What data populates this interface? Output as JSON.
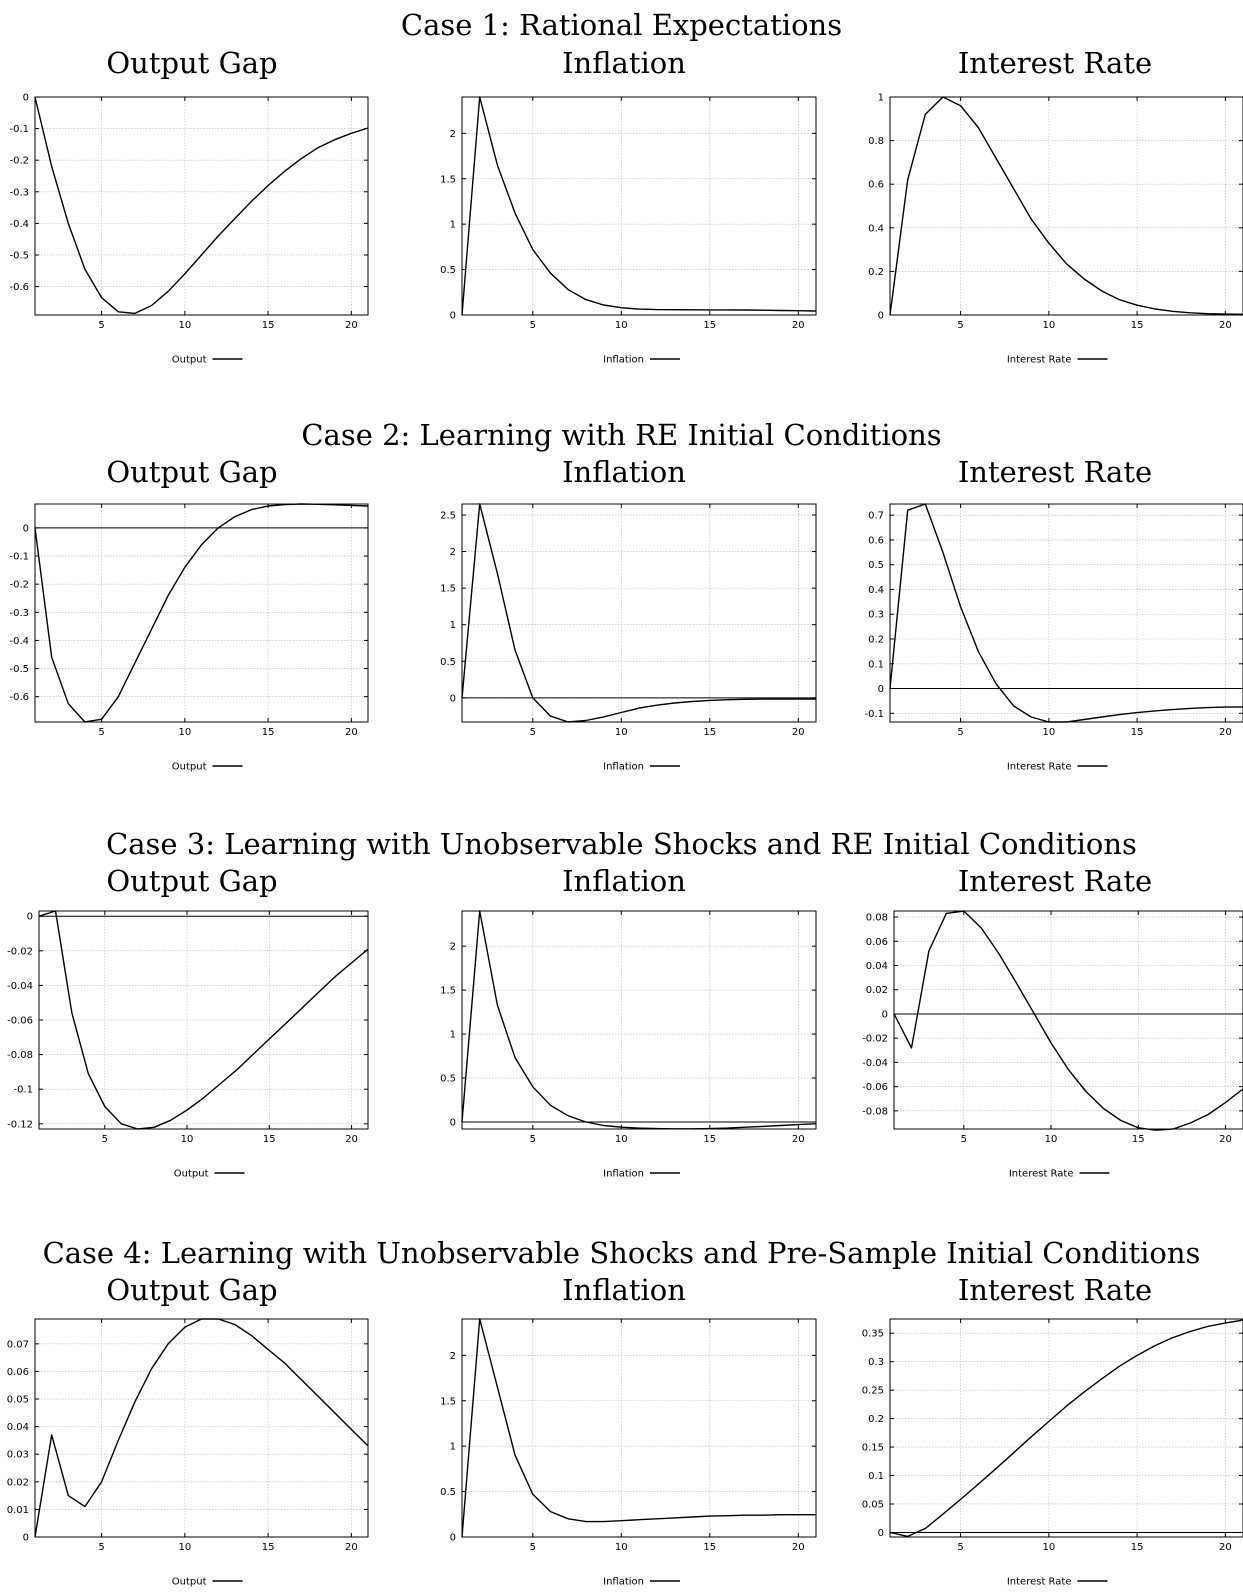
{
  "cases": [
    {
      "title": "Case 1: Rational Expectations",
      "panels": [
        "Output Gap",
        "Inflation",
        "Interest Rate"
      ]
    },
    {
      "title": "Case 2: Learning with RE Initial Conditions",
      "panels": [
        "Output Gap",
        "Inflation",
        "Interest Rate"
      ]
    },
    {
      "title": "Case 3: Learning with Unobservable Shocks and RE Initial Conditions",
      "panels": [
        "Output Gap",
        "Inflation",
        "Interest Rate"
      ]
    },
    {
      "title": "Case 4: Learning with Unobservable Shocks and Pre-Sample Initial Conditions",
      "panels": [
        "Output Gap",
        "Inflation",
        "Interest Rate"
      ]
    }
  ],
  "chart_data": [
    {
      "type": "line",
      "case": 1,
      "title": "Output Gap",
      "xlabel": "",
      "ylabel": "",
      "legend": "Output",
      "legend_position": "bottom-center",
      "grid": true,
      "zero_line": false,
      "xlim": [
        1,
        21
      ],
      "ylim": [
        -0.69,
        0
      ],
      "xticks": [
        5,
        10,
        15,
        20
      ],
      "yticks": [
        0,
        -0.1,
        -0.2,
        -0.3,
        -0.4,
        -0.5,
        -0.6
      ],
      "ytick_labels": [
        "0",
        "-0.1",
        "-0.2",
        "-0.3",
        "-0.4",
        "-0.5",
        "-0.6"
      ],
      "series": [
        {
          "name": "Output",
          "x": [
            1,
            2,
            3,
            4,
            5,
            6,
            7,
            8,
            9,
            10,
            11,
            12,
            13,
            14,
            15,
            16,
            17,
            18,
            19,
            20,
            21
          ],
          "values": [
            0,
            -0.22,
            -0.4,
            -0.545,
            -0.635,
            -0.68,
            -0.685,
            -0.66,
            -0.615,
            -0.56,
            -0.5,
            -0.44,
            -0.385,
            -0.33,
            -0.28,
            -0.235,
            -0.195,
            -0.16,
            -0.135,
            -0.115,
            -0.098
          ]
        }
      ]
    },
    {
      "type": "line",
      "case": 1,
      "title": "Inflation",
      "xlabel": "",
      "ylabel": "",
      "legend": "Inflation",
      "legend_position": "bottom-center",
      "grid": true,
      "zero_line": false,
      "xlim": [
        1,
        21
      ],
      "ylim": [
        0,
        2.4
      ],
      "xticks": [
        5,
        10,
        15,
        20
      ],
      "yticks": [
        0,
        0.5,
        1,
        1.5,
        2
      ],
      "ytick_labels": [
        "0",
        "0.5",
        "1",
        "1.5",
        "2"
      ],
      "series": [
        {
          "name": "Inflation",
          "x": [
            1,
            2,
            3,
            4,
            5,
            6,
            7,
            8,
            9,
            10,
            11,
            12,
            13,
            14,
            15,
            16,
            17,
            18,
            19,
            20,
            21
          ],
          "values": [
            0,
            2.4,
            1.65,
            1.12,
            0.72,
            0.46,
            0.28,
            0.17,
            0.11,
            0.08,
            0.065,
            0.06,
            0.058,
            0.057,
            0.056,
            0.056,
            0.055,
            0.053,
            0.05,
            0.047,
            0.044
          ]
        }
      ]
    },
    {
      "type": "line",
      "case": 1,
      "title": "Interest Rate",
      "xlabel": "",
      "ylabel": "",
      "legend": "Interest Rate",
      "legend_position": "bottom-center",
      "grid": true,
      "zero_line": false,
      "xlim": [
        1,
        21
      ],
      "ylim": [
        0,
        1.0
      ],
      "xticks": [
        5,
        10,
        15,
        20
      ],
      "yticks": [
        0,
        0.2,
        0.4,
        0.6,
        0.8,
        1
      ],
      "ytick_labels": [
        "0",
        "0.2",
        "0.4",
        "0.6",
        "0.8",
        "1"
      ],
      "series": [
        {
          "name": "Interest Rate",
          "x": [
            1,
            2,
            3,
            4,
            5,
            6,
            7,
            8,
            9,
            10,
            11,
            12,
            13,
            14,
            15,
            16,
            17,
            18,
            19,
            20,
            21
          ],
          "values": [
            0,
            0.62,
            0.92,
            1.0,
            0.96,
            0.86,
            0.72,
            0.58,
            0.44,
            0.33,
            0.235,
            0.165,
            0.11,
            0.07,
            0.045,
            0.028,
            0.017,
            0.01,
            0.006,
            0.004,
            0.003
          ]
        }
      ]
    },
    {
      "type": "line",
      "case": 2,
      "title": "Output Gap",
      "xlabel": "",
      "ylabel": "",
      "legend": "Output",
      "legend_position": "bottom-center",
      "grid": true,
      "zero_line": true,
      "xlim": [
        1,
        21
      ],
      "ylim": [
        -0.69,
        0.085
      ],
      "xticks": [
        5,
        10,
        15,
        20
      ],
      "yticks": [
        0,
        -0.1,
        -0.2,
        -0.3,
        -0.4,
        -0.5,
        -0.6
      ],
      "ytick_labels": [
        "0",
        "-0.1",
        "-0.2",
        "-0.3",
        "-0.4",
        "-0.5",
        "-0.6"
      ],
      "series": [
        {
          "name": "Output",
          "x": [
            1,
            2,
            3,
            4,
            5,
            6,
            7,
            8,
            9,
            10,
            11,
            12,
            13,
            14,
            15,
            16,
            17,
            18,
            19,
            20,
            21
          ],
          "values": [
            0,
            -0.46,
            -0.625,
            -0.69,
            -0.68,
            -0.6,
            -0.48,
            -0.36,
            -0.24,
            -0.14,
            -0.06,
            0.0,
            0.04,
            0.065,
            0.078,
            0.083,
            0.085,
            0.084,
            0.082,
            0.08,
            0.078
          ]
        }
      ]
    },
    {
      "type": "line",
      "case": 2,
      "title": "Inflation",
      "xlabel": "",
      "ylabel": "",
      "legend": "Inflation",
      "legend_position": "bottom-center",
      "grid": true,
      "zero_line": true,
      "xlim": [
        1,
        21
      ],
      "ylim": [
        -0.33,
        2.65
      ],
      "xticks": [
        5,
        10,
        15,
        20
      ],
      "yticks": [
        0,
        0.5,
        1,
        1.5,
        2,
        2.5
      ],
      "ytick_labels": [
        "0",
        "0.5",
        "1",
        "1.5",
        "2",
        "2.5"
      ],
      "series": [
        {
          "name": "Inflation",
          "x": [
            1,
            2,
            3,
            4,
            5,
            6,
            7,
            8,
            9,
            10,
            11,
            12,
            13,
            14,
            15,
            16,
            17,
            18,
            19,
            20,
            21
          ],
          "values": [
            0,
            2.65,
            1.7,
            0.65,
            0.0,
            -0.25,
            -0.33,
            -0.31,
            -0.26,
            -0.2,
            -0.14,
            -0.1,
            -0.07,
            -0.05,
            -0.035,
            -0.025,
            -0.02,
            -0.017,
            -0.016,
            -0.016,
            -0.016
          ]
        }
      ]
    },
    {
      "type": "line",
      "case": 2,
      "title": "Interest Rate",
      "xlabel": "",
      "ylabel": "",
      "legend": "Interest Rate",
      "legend_position": "bottom-center",
      "grid": true,
      "zero_line": true,
      "xlim": [
        1,
        21
      ],
      "ylim": [
        -0.135,
        0.745
      ],
      "xticks": [
        5,
        10,
        15,
        20
      ],
      "yticks": [
        -0.1,
        0,
        0.1,
        0.2,
        0.3,
        0.4,
        0.5,
        0.6,
        0.7
      ],
      "ytick_labels": [
        "-0.1",
        "0",
        "0.1",
        "0.2",
        "0.3",
        "0.4",
        "0.5",
        "0.6",
        "0.7"
      ],
      "series": [
        {
          "name": "Interest Rate",
          "x": [
            1,
            2,
            3,
            4,
            5,
            6,
            7,
            8,
            9,
            10,
            11,
            12,
            13,
            14,
            15,
            16,
            17,
            18,
            19,
            20,
            21
          ],
          "values": [
            0,
            0.72,
            0.745,
            0.55,
            0.33,
            0.15,
            0.02,
            -0.07,
            -0.115,
            -0.135,
            -0.135,
            -0.125,
            -0.115,
            -0.105,
            -0.097,
            -0.09,
            -0.085,
            -0.08,
            -0.077,
            -0.075,
            -0.074
          ]
        }
      ]
    },
    {
      "type": "line",
      "case": 3,
      "title": "Output Gap",
      "xlabel": "",
      "ylabel": "",
      "legend": "Output",
      "legend_position": "bottom-center",
      "grid": true,
      "zero_line": true,
      "xlim": [
        1,
        21
      ],
      "ylim": [
        -0.123,
        0.003
      ],
      "xticks": [
        5,
        10,
        15,
        20
      ],
      "yticks": [
        0,
        -0.02,
        -0.04,
        -0.06,
        -0.08,
        -0.1,
        -0.12
      ],
      "ytick_labels": [
        "0",
        "-0.02",
        "-0.04",
        "-0.06",
        "-0.08",
        "-0.1",
        "-0.12"
      ],
      "series": [
        {
          "name": "Output",
          "x": [
            1,
            2,
            3,
            4,
            5,
            6,
            7,
            8,
            9,
            10,
            11,
            12,
            13,
            14,
            15,
            16,
            17,
            18,
            19,
            20,
            21
          ],
          "values": [
            0,
            0.003,
            -0.056,
            -0.091,
            -0.11,
            -0.12,
            -0.123,
            -0.122,
            -0.118,
            -0.112,
            -0.105,
            -0.097,
            -0.089,
            -0.08,
            -0.071,
            -0.062,
            -0.053,
            -0.044,
            -0.035,
            -0.027,
            -0.019
          ]
        }
      ]
    },
    {
      "type": "line",
      "case": 3,
      "title": "Inflation",
      "xlabel": "",
      "ylabel": "",
      "legend": "Inflation",
      "legend_position": "bottom-center",
      "grid": true,
      "zero_line": true,
      "xlim": [
        1,
        21
      ],
      "ylim": [
        -0.08,
        2.4
      ],
      "xticks": [
        5,
        10,
        15,
        20
      ],
      "yticks": [
        0,
        0.5,
        1,
        1.5,
        2
      ],
      "ytick_labels": [
        "0",
        "0.5",
        "1",
        "1.5",
        "2"
      ],
      "series": [
        {
          "name": "Inflation",
          "x": [
            1,
            2,
            3,
            4,
            5,
            6,
            7,
            8,
            9,
            10,
            11,
            12,
            13,
            14,
            15,
            16,
            17,
            18,
            19,
            20,
            21
          ],
          "values": [
            0,
            2.4,
            1.33,
            0.73,
            0.4,
            0.19,
            0.07,
            0.0,
            -0.04,
            -0.06,
            -0.07,
            -0.075,
            -0.078,
            -0.078,
            -0.075,
            -0.07,
            -0.06,
            -0.05,
            -0.04,
            -0.03,
            -0.02
          ]
        }
      ]
    },
    {
      "type": "line",
      "case": 3,
      "title": "Interest Rate",
      "xlabel": "",
      "ylabel": "",
      "legend": "Interest Rate",
      "legend_position": "bottom-center",
      "grid": true,
      "zero_line": true,
      "xlim": [
        1,
        21
      ],
      "ylim": [
        -0.095,
        0.085
      ],
      "xticks": [
        5,
        10,
        15,
        20
      ],
      "yticks": [
        -0.08,
        -0.06,
        -0.04,
        -0.02,
        0,
        0.02,
        0.04,
        0.06,
        0.08
      ],
      "ytick_labels": [
        "-0.08",
        "-0.06",
        "-0.04",
        "-0.02",
        "0",
        "0.02",
        "0.04",
        "0.06",
        "0.08"
      ],
      "series": [
        {
          "name": "Interest Rate",
          "x": [
            1,
            2,
            3,
            4,
            5,
            6,
            7,
            8,
            9,
            10,
            11,
            12,
            13,
            14,
            15,
            16,
            17,
            18,
            19,
            20,
            21
          ],
          "values": [
            0,
            -0.028,
            0.052,
            0.083,
            0.085,
            0.071,
            0.05,
            0.026,
            0.001,
            -0.024,
            -0.046,
            -0.064,
            -0.078,
            -0.088,
            -0.094,
            -0.096,
            -0.095,
            -0.09,
            -0.083,
            -0.073,
            -0.062
          ]
        }
      ]
    },
    {
      "type": "line",
      "case": 4,
      "title": "Output Gap",
      "xlabel": "",
      "ylabel": "",
      "legend": "Output",
      "legend_position": "bottom-center",
      "grid": true,
      "zero_line": false,
      "xlim": [
        1,
        21
      ],
      "ylim": [
        0,
        0.079
      ],
      "xticks": [
        5,
        10,
        15,
        20
      ],
      "yticks": [
        0,
        0.01,
        0.02,
        0.03,
        0.04,
        0.05,
        0.06,
        0.07
      ],
      "ytick_labels": [
        "0",
        "0.01",
        "0.02",
        "0.03",
        "0.04",
        "0.05",
        "0.06",
        "0.07"
      ],
      "series": [
        {
          "name": "Output",
          "x": [
            1,
            2,
            3,
            4,
            5,
            6,
            7,
            8,
            9,
            10,
            11,
            12,
            13,
            14,
            15,
            16,
            17,
            18,
            19,
            20,
            21
          ],
          "values": [
            0,
            0.037,
            0.015,
            0.011,
            0.02,
            0.035,
            0.049,
            0.061,
            0.07,
            0.076,
            0.079,
            0.079,
            0.077,
            0.073,
            0.068,
            0.063,
            0.057,
            0.051,
            0.045,
            0.039,
            0.033
          ]
        }
      ]
    },
    {
      "type": "line",
      "case": 4,
      "title": "Inflation",
      "xlabel": "",
      "ylabel": "",
      "legend": "Inflation",
      "legend_position": "bottom-center",
      "grid": true,
      "zero_line": false,
      "xlim": [
        1,
        21
      ],
      "ylim": [
        0,
        2.4
      ],
      "xticks": [
        5,
        10,
        15,
        20
      ],
      "yticks": [
        0,
        0.5,
        1,
        1.5,
        2
      ],
      "ytick_labels": [
        "0",
        "0.5",
        "1",
        "1.5",
        "2"
      ],
      "series": [
        {
          "name": "Inflation",
          "x": [
            1,
            2,
            3,
            4,
            5,
            6,
            7,
            8,
            9,
            10,
            11,
            12,
            13,
            14,
            15,
            16,
            17,
            18,
            19,
            20,
            21
          ],
          "values": [
            0,
            2.4,
            1.65,
            0.9,
            0.47,
            0.28,
            0.2,
            0.17,
            0.17,
            0.18,
            0.19,
            0.2,
            0.21,
            0.22,
            0.23,
            0.235,
            0.24,
            0.24,
            0.245,
            0.245,
            0.245
          ]
        }
      ]
    },
    {
      "type": "line",
      "case": 4,
      "title": "Interest Rate",
      "xlabel": "",
      "ylabel": "",
      "legend": "Interest Rate",
      "legend_position": "bottom-center",
      "grid": true,
      "zero_line": true,
      "xlim": [
        1,
        21
      ],
      "ylim": [
        -0.008,
        0.375
      ],
      "xticks": [
        5,
        10,
        15,
        20
      ],
      "yticks": [
        0,
        0.05,
        0.1,
        0.15,
        0.2,
        0.25,
        0.3,
        0.35
      ],
      "ytick_labels": [
        "0",
        "0.05",
        "0.1",
        "0.15",
        "0.2",
        "0.25",
        "0.3",
        "0.35"
      ],
      "series": [
        {
          "name": "Interest Rate",
          "x": [
            1,
            2,
            3,
            4,
            5,
            6,
            7,
            8,
            9,
            10,
            11,
            12,
            13,
            14,
            15,
            16,
            17,
            18,
            19,
            20,
            21
          ],
          "values": [
            0,
            -0.007,
            0.007,
            0.032,
            0.058,
            0.085,
            0.112,
            0.14,
            0.168,
            0.195,
            0.222,
            0.247,
            0.27,
            0.292,
            0.311,
            0.328,
            0.342,
            0.353,
            0.362,
            0.368,
            0.373
          ]
        }
      ]
    }
  ]
}
